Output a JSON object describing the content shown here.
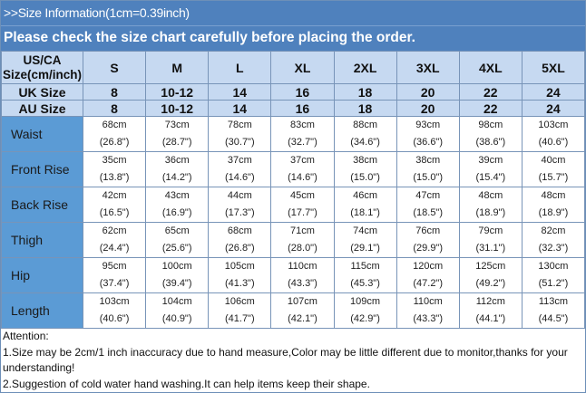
{
  "header": {
    "title": ">>Size Information(1cm=0.39inch)",
    "subtitle": "Please check the size chart carefully before placing the order."
  },
  "colors": {
    "banner": "#4f81bd",
    "header_cells": "#c6d9f1",
    "label_cells": "#5b9bd5"
  },
  "table": {
    "corner_line1": "US/CA",
    "corner_line2": "Size(cm/inch)",
    "sizes": [
      "S",
      "M",
      "L",
      "XL",
      "2XL",
      "3XL",
      "4XL",
      "5XL"
    ],
    "uk": {
      "label": "UK Size",
      "values": [
        "8",
        "10-12",
        "14",
        "16",
        "18",
        "20",
        "22",
        "24"
      ]
    },
    "au": {
      "label": "AU Size",
      "values": [
        "8",
        "10-12",
        "14",
        "16",
        "18",
        "20",
        "22",
        "24"
      ]
    },
    "rows": [
      {
        "label": "Waist",
        "cm": [
          "68cm",
          "73cm",
          "78cm",
          "83cm",
          "88cm",
          "93cm",
          "98cm",
          "103cm"
        ],
        "inch": [
          "(26.8\")",
          "(28.7\")",
          "(30.7\")",
          "(32.7\")",
          "(34.6\")",
          "(36.6\")",
          "(38.6\")",
          "(40.6\")"
        ]
      },
      {
        "label": "Front Rise",
        "cm": [
          "35cm",
          "36cm",
          "37cm",
          "37cm",
          "38cm",
          "38cm",
          "39cm",
          "40cm"
        ],
        "inch": [
          "(13.8\")",
          "(14.2\")",
          "(14.6\")",
          "(14.6\")",
          "(15.0\")",
          "(15.0\")",
          "(15.4\")",
          "(15.7\")"
        ]
      },
      {
        "label": "Back Rise",
        "cm": [
          "42cm",
          "43cm",
          "44cm",
          "45cm",
          "46cm",
          "47cm",
          "48cm",
          "48cm"
        ],
        "inch": [
          "(16.5\")",
          "(16.9\")",
          "(17.3\")",
          "(17.7\")",
          "(18.1\")",
          "(18.5\")",
          "(18.9\")",
          "(18.9\")"
        ]
      },
      {
        "label": "Thigh",
        "cm": [
          "62cm",
          "65cm",
          "68cm",
          "71cm",
          "74cm",
          "76cm",
          "79cm",
          "82cm"
        ],
        "inch": [
          "(24.4\")",
          "(25.6\")",
          "(26.8\")",
          "(28.0\")",
          "(29.1\")",
          "(29.9\")",
          "(31.1\")",
          "(32.3\")"
        ]
      },
      {
        "label": "Hip",
        "cm": [
          "95cm",
          "100cm",
          "105cm",
          "110cm",
          "115cm",
          "120cm",
          "125cm",
          "130cm"
        ],
        "inch": [
          "(37.4\")",
          "(39.4\")",
          "(41.3\")",
          "(43.3\")",
          "(45.3\")",
          "(47.2\")",
          "(49.2\")",
          "(51.2\")"
        ]
      },
      {
        "label": "Length",
        "cm": [
          "103cm",
          "104cm",
          "106cm",
          "107cm",
          "109cm",
          "110cm",
          "112cm",
          "113cm"
        ],
        "inch": [
          "(40.6\")",
          "(40.9\")",
          "(41.7\")",
          "(42.1\")",
          "(42.9\")",
          "(43.3\")",
          "(44.1\")",
          "(44.5\")"
        ]
      }
    ]
  },
  "notes": {
    "heading": "Attention:",
    "items": [
      "1.Size may be 2cm/1 inch inaccuracy due to hand measure,Color may be little different due to monitor,thanks for your understanding!",
      "2.Suggestion of cold water hand washing.It can help items keep their shape."
    ]
  }
}
